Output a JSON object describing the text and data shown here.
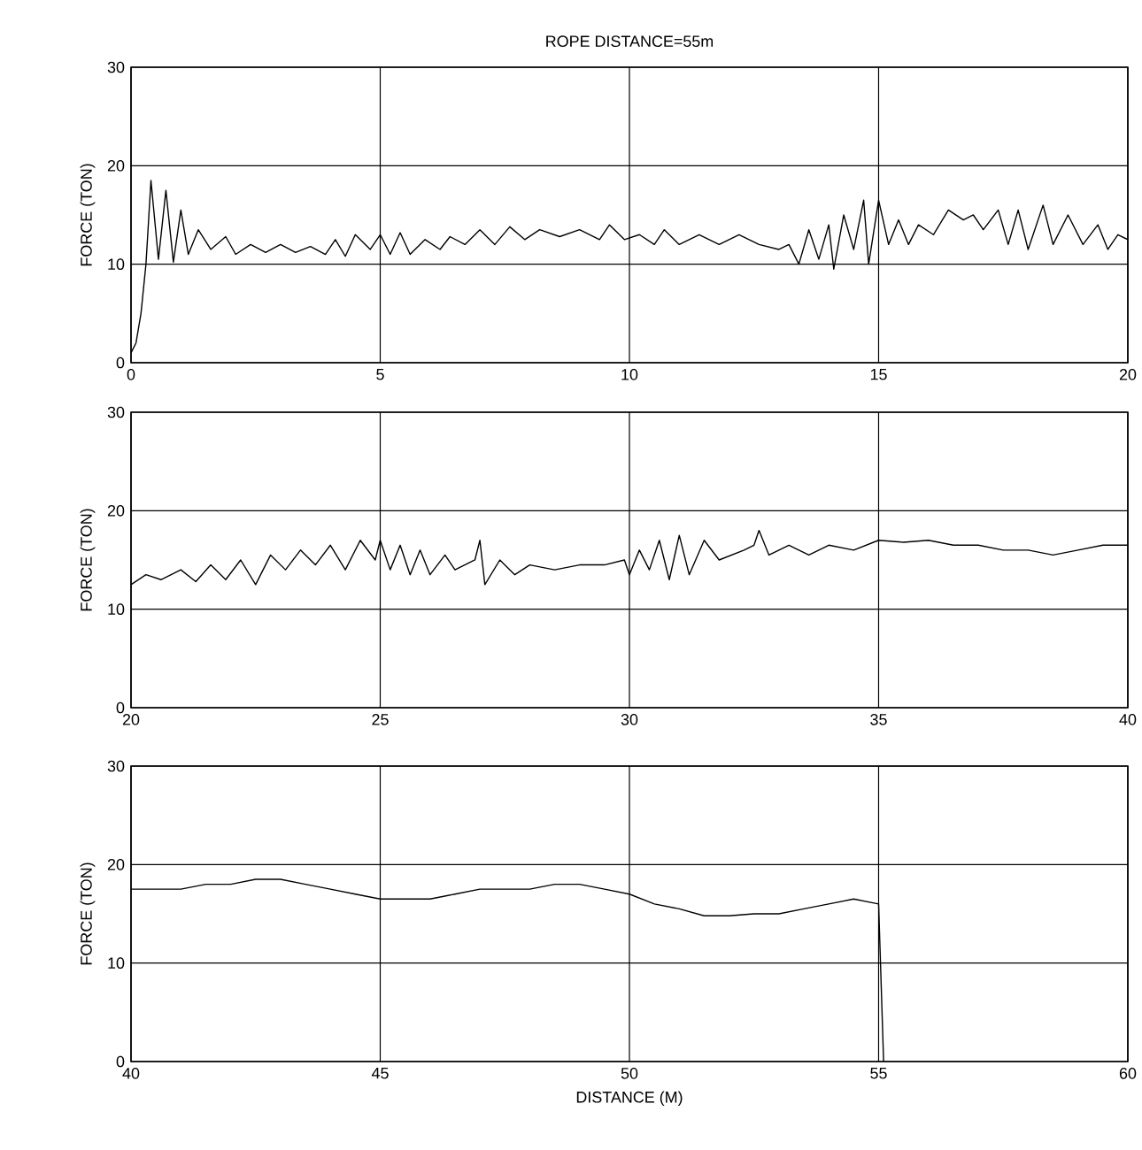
{
  "chart_data": [
    {
      "type": "line",
      "title": "ROPE DISTANCE=55m",
      "ylabel": "FORCE (TON)",
      "xlim": [
        0,
        20
      ],
      "ylim": [
        0,
        30
      ],
      "xticks": [
        0,
        5,
        10,
        15,
        20
      ],
      "yticks": [
        0,
        10,
        20,
        30
      ],
      "grid": true,
      "color": "#000000",
      "x": [
        0,
        0.1,
        0.2,
        0.3,
        0.4,
        0.55,
        0.7,
        0.85,
        1.0,
        1.15,
        1.35,
        1.6,
        1.9,
        2.1,
        2.4,
        2.7,
        3.0,
        3.3,
        3.6,
        3.9,
        4.1,
        4.3,
        4.5,
        4.8,
        5.0,
        5.2,
        5.4,
        5.6,
        5.9,
        6.2,
        6.4,
        6.7,
        7.0,
        7.3,
        7.6,
        7.9,
        8.2,
        8.6,
        9.0,
        9.4,
        9.6,
        9.9,
        10.2,
        10.5,
        10.7,
        11.0,
        11.4,
        11.8,
        12.2,
        12.6,
        13.0,
        13.2,
        13.4,
        13.6,
        13.8,
        14.0,
        14.1,
        14.3,
        14.5,
        14.7,
        14.8,
        15.0,
        15.2,
        15.4,
        15.6,
        15.8,
        16.1,
        16.4,
        16.7,
        16.9,
        17.1,
        17.4,
        17.6,
        17.8,
        18.0,
        18.3,
        18.5,
        18.8,
        19.1,
        19.4,
        19.6,
        19.8,
        20
      ],
      "values": [
        1,
        2,
        5,
        10,
        18.5,
        10.5,
        17.5,
        10.2,
        15.5,
        11,
        13.5,
        11.5,
        12.8,
        11,
        12,
        11.2,
        12,
        11.2,
        11.8,
        11,
        12.5,
        10.8,
        13,
        11.5,
        13,
        11,
        13.2,
        11,
        12.5,
        11.5,
        12.8,
        12,
        13.5,
        12,
        13.8,
        12.5,
        13.5,
        12.8,
        13.5,
        12.5,
        14,
        12.5,
        13,
        12,
        13.5,
        12,
        13,
        12,
        13,
        12,
        11.5,
        12,
        10,
        13.5,
        10.5,
        14,
        9.5,
        15,
        11.5,
        16.5,
        10,
        16.5,
        12,
        14.5,
        12,
        14,
        13,
        15.5,
        14.5,
        15,
        13.5,
        15.5,
        12,
        15.5,
        11.5,
        16,
        12,
        15,
        12,
        14,
        11.5,
        13,
        12.5
      ]
    },
    {
      "type": "line",
      "ylabel": "FORCE (TON)",
      "xlim": [
        20,
        40
      ],
      "ylim": [
        0,
        30
      ],
      "xticks": [
        20,
        25,
        30,
        35,
        40
      ],
      "yticks": [
        0,
        10,
        20,
        30
      ],
      "grid": true,
      "color": "#000000",
      "x": [
        20,
        20.3,
        20.6,
        21.0,
        21.3,
        21.6,
        21.9,
        22.2,
        22.5,
        22.8,
        23.1,
        23.4,
        23.7,
        24.0,
        24.3,
        24.6,
        24.9,
        25.0,
        25.2,
        25.4,
        25.6,
        25.8,
        26.0,
        26.3,
        26.5,
        26.9,
        27.0,
        27.1,
        27.4,
        27.7,
        28.0,
        28.5,
        29.0,
        29.5,
        29.9,
        30.0,
        30.2,
        30.4,
        30.6,
        30.8,
        31.0,
        31.2,
        31.5,
        31.8,
        32.3,
        32.5,
        32.6,
        32.8,
        33.2,
        33.6,
        34.0,
        34.5,
        35.0,
        35.5,
        36.0,
        36.5,
        37.0,
        37.5,
        38.0,
        38.5,
        39.0,
        39.5,
        40
      ],
      "values": [
        12.5,
        13.5,
        13,
        14,
        12.8,
        14.5,
        13,
        15,
        12.5,
        15.5,
        14,
        16,
        14.5,
        16.5,
        14,
        17,
        15,
        17,
        14,
        16.5,
        13.5,
        16,
        13.5,
        15.5,
        14,
        15,
        17,
        12.5,
        15,
        13.5,
        14.5,
        14,
        14.5,
        14.5,
        15,
        13.5,
        16,
        14,
        17,
        13,
        17.5,
        13.5,
        17,
        15,
        16,
        16.5,
        18,
        15.5,
        16.5,
        15.5,
        16.5,
        16,
        17,
        16.8,
        17,
        16.5,
        16.5,
        16,
        16,
        15.5,
        16,
        16.5,
        16.5
      ]
    },
    {
      "type": "line",
      "ylabel": "FORCE (TON)",
      "xlabel": "DISTANCE (M)",
      "xlim": [
        40,
        60
      ],
      "ylim": [
        0,
        30
      ],
      "xticks": [
        40,
        45,
        50,
        55,
        60
      ],
      "yticks": [
        0,
        10,
        20,
        30
      ],
      "grid": true,
      "color": "#000000",
      "x": [
        40,
        40.5,
        41,
        41.5,
        42,
        42.5,
        43,
        43.5,
        44,
        44.5,
        45,
        45.5,
        46,
        46.5,
        47,
        47.5,
        48,
        48.5,
        49,
        49.5,
        50,
        50.5,
        51,
        51.5,
        52,
        52.5,
        53,
        53.5,
        54,
        54.5,
        55,
        55.1
      ],
      "values": [
        17.5,
        17.5,
        17.5,
        18,
        18,
        18.5,
        18.5,
        18,
        17.5,
        17,
        16.5,
        16.5,
        16.5,
        17,
        17.5,
        17.5,
        17.5,
        18,
        18,
        17.5,
        17,
        16,
        15.5,
        14.8,
        14.8,
        15,
        15,
        15.5,
        16,
        16.5,
        16,
        0
      ]
    }
  ]
}
